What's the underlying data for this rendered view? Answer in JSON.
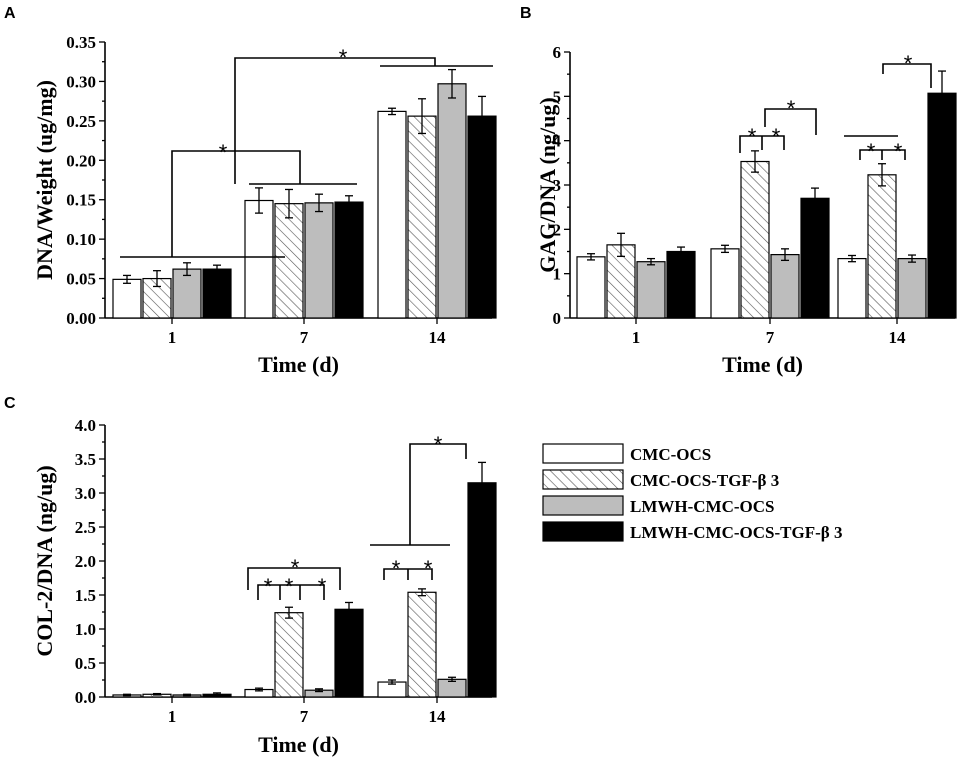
{
  "series_styles": [
    {
      "name": "CMC-OCS",
      "fill": "#ffffff",
      "pattern": "none"
    },
    {
      "name": "CMC-OCS-TGF-β 3",
      "fill": "#ffffff",
      "pattern": "hatch"
    },
    {
      "name": "LMWH-CMC-OCS",
      "fill": "#bdbdbd",
      "pattern": "none"
    },
    {
      "name": "LMWH-CMC-OCS-TGF-β 3",
      "fill": "#000000",
      "pattern": "none"
    }
  ],
  "legend": {
    "items": [
      "CMC-OCS",
      "CMC-OCS-TGF-β 3",
      "LMWH-CMC-OCS",
      "LMWH-CMC-OCS-TGF-β 3"
    ]
  },
  "chart_data": [
    {
      "panel": "A",
      "type": "bar",
      "xlabel": "Time (d)",
      "ylabel": "DNA/Weight (ug/mg)",
      "categories": [
        "1",
        "7",
        "14"
      ],
      "ylim": [
        0,
        0.35
      ],
      "yticks": [
        "0.00",
        "0.05",
        "0.10",
        "0.15",
        "0.20",
        "0.25",
        "0.30",
        "0.35"
      ],
      "series": [
        {
          "name": "CMC-OCS",
          "values": [
            0.049,
            0.149,
            0.262
          ],
          "errors": [
            0.005,
            0.016,
            0.004
          ]
        },
        {
          "name": "CMC-OCS-TGF-β 3",
          "values": [
            0.05,
            0.145,
            0.256
          ],
          "errors": [
            0.01,
            0.018,
            0.022
          ]
        },
        {
          "name": "LMWH-CMC-OCS",
          "values": [
            0.062,
            0.146,
            0.297
          ],
          "errors": [
            0.008,
            0.011,
            0.018
          ]
        },
        {
          "name": "LMWH-CMC-OCS-TGF-β 3",
          "values": [
            0.062,
            0.147,
            0.256
          ],
          "errors": [
            0.005,
            0.008,
            0.025
          ]
        }
      ],
      "annotations": [
        "*",
        "*"
      ]
    },
    {
      "panel": "B",
      "type": "bar",
      "xlabel": "Time (d)",
      "ylabel": "GAG/DNA (ng/ug)",
      "categories": [
        "1",
        "7",
        "14"
      ],
      "ylim": [
        0,
        6
      ],
      "yticks": [
        "0",
        "1",
        "2",
        "3",
        "4",
        "5",
        "6"
      ],
      "series": [
        {
          "name": "CMC-OCS",
          "values": [
            1.38,
            1.56,
            1.34
          ],
          "errors": [
            0.07,
            0.08,
            0.07
          ]
        },
        {
          "name": "CMC-OCS-TGF-β 3",
          "values": [
            1.65,
            3.53,
            3.23
          ],
          "errors": [
            0.26,
            0.24,
            0.25
          ]
        },
        {
          "name": "LMWH-CMC-OCS",
          "values": [
            1.27,
            1.43,
            1.34
          ],
          "errors": [
            0.07,
            0.13,
            0.08
          ]
        },
        {
          "name": "LMWH-CMC-OCS-TGF-β 3",
          "values": [
            1.5,
            2.7,
            5.07
          ],
          "errors": [
            0.1,
            0.23,
            0.5
          ]
        }
      ],
      "annotations": [
        "*",
        "*",
        "*",
        "*",
        "*",
        "*"
      ]
    },
    {
      "panel": "C",
      "type": "bar",
      "xlabel": "Time (d)",
      "ylabel": "COL-2/DNA (ng/ug)",
      "categories": [
        "1",
        "7",
        "14"
      ],
      "ylim": [
        0,
        4.0
      ],
      "yticks": [
        "0.0",
        "0.5",
        "1.0",
        "1.5",
        "2.0",
        "2.5",
        "3.0",
        "3.5",
        "4.0"
      ],
      "series": [
        {
          "name": "CMC-OCS",
          "values": [
            0.03,
            0.11,
            0.22
          ],
          "errors": [
            0.01,
            0.02,
            0.03
          ]
        },
        {
          "name": "CMC-OCS-TGF-β 3",
          "values": [
            0.04,
            1.24,
            1.54
          ],
          "errors": [
            0.01,
            0.08,
            0.05
          ]
        },
        {
          "name": "LMWH-CMC-OCS",
          "values": [
            0.03,
            0.1,
            0.26
          ],
          "errors": [
            0.01,
            0.02,
            0.03
          ]
        },
        {
          "name": "LMWH-CMC-OCS-TGF-β 3",
          "values": [
            0.04,
            1.29,
            3.15
          ],
          "errors": [
            0.02,
            0.1,
            0.3
          ]
        }
      ],
      "annotations": [
        "*",
        "*",
        "*",
        "*",
        "*",
        "*"
      ]
    }
  ]
}
